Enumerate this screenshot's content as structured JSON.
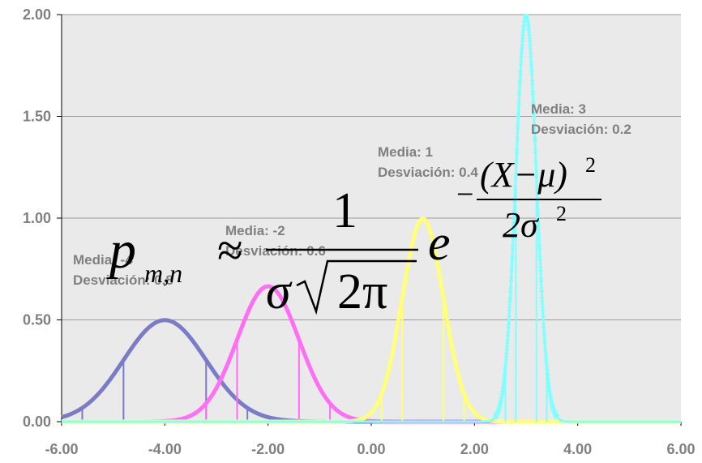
{
  "chart_data": {
    "type": "line",
    "xlim": [
      -6,
      6
    ],
    "ylim": [
      0,
      2
    ],
    "x_ticks": [
      "-6.00",
      "-4.00",
      "-2.00",
      "0.00",
      "2.00",
      "4.00",
      "6.00"
    ],
    "y_ticks": [
      "0.00",
      "0.50",
      "1.00",
      "1.50",
      "2.00"
    ],
    "grid": "horizontal",
    "plot_background": "#eaeaea",
    "series": [
      {
        "mean": -4,
        "sd": 0.8,
        "color": "#7b7bc8",
        "media_label": "Media: -4",
        "desv_label": "Desviación: 0.8"
      },
      {
        "mean": -2,
        "sd": 0.6,
        "color": "#ff6ef5",
        "media_label": "Media: -2",
        "desv_label": "Desviación: 0.6"
      },
      {
        "mean": 1,
        "sd": 0.4,
        "color": "#ffff7a",
        "media_label": "Media: 1",
        "desv_label": "Desviación: 0.4"
      },
      {
        "mean": 3,
        "sd": 0.2,
        "color": "#7fffff",
        "media_label": "Media: 3",
        "desv_label": "Desviación: 0.2"
      }
    ],
    "formula": {
      "lhs": "p",
      "subscript": "m,n",
      "approx": "≈",
      "numerator": "1",
      "sigma": "σ",
      "two_pi": "2π",
      "e": "e",
      "minus": "−",
      "exp_numerator": "(X−μ)",
      "exp_power": "2",
      "exp_denominator": "2σ"
    }
  }
}
